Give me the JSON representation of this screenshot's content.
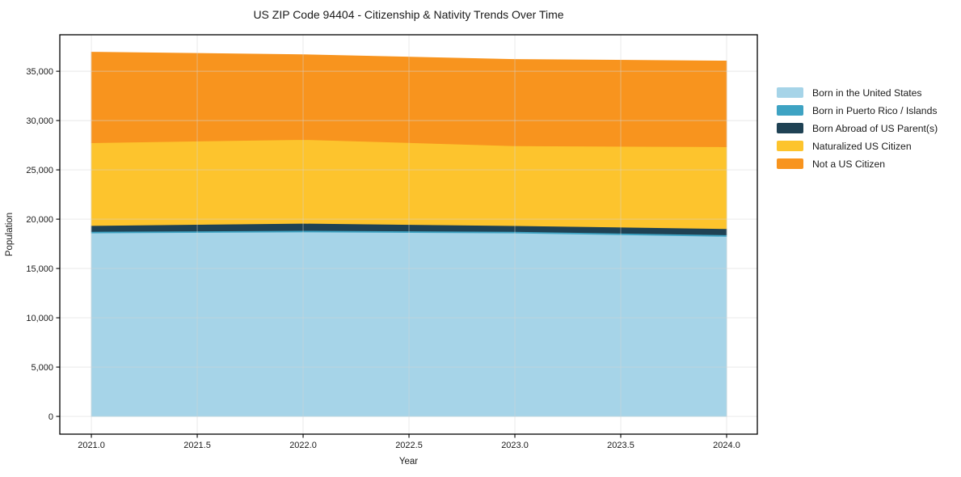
{
  "title": "US ZIP Code 94404 - Citizenship & Nativity Trends Over Time",
  "chart_data": {
    "type": "area",
    "stacked": true,
    "title": "US ZIP Code 94404 - Citizenship & Nativity Trends Over Time",
    "xlabel": "Year",
    "ylabel": "Population",
    "x": [
      2021,
      2022,
      2023,
      2024
    ],
    "series": [
      {
        "name": "Born in the United States",
        "color": "#a6d4e8",
        "values": [
          18600,
          18700,
          18600,
          18250
        ]
      },
      {
        "name": "Born in Puerto Rico / Islands",
        "color": "#3ea3c3",
        "values": [
          150,
          150,
          150,
          160
        ]
      },
      {
        "name": "Born Abroad of US Parent(s)",
        "color": "#1f4254",
        "values": [
          600,
          730,
          590,
          630
        ]
      },
      {
        "name": "Naturalized US Citizen",
        "color": "#fdc42d",
        "values": [
          8400,
          8500,
          8100,
          8300
        ]
      },
      {
        "name": "Not a US Citizen",
        "color": "#f8941e",
        "values": [
          9190,
          8600,
          8760,
          8700
        ]
      }
    ],
    "stacked_totals": [
      36940,
      36680,
      36200,
      36040
    ],
    "x_ticks": [
      2021.0,
      2021.5,
      2022.0,
      2022.5,
      2023.0,
      2023.5,
      2024.0
    ],
    "x_tick_labels": [
      "2021.0",
      "2021.5",
      "2022.0",
      "2022.5",
      "2023.0",
      "2023.5",
      "2024.0"
    ],
    "y_ticks": [
      0,
      5000,
      10000,
      15000,
      20000,
      25000,
      30000,
      35000
    ],
    "y_tick_labels": [
      "0",
      "5,000",
      "10,000",
      "15,000",
      "20,000",
      "25,000",
      "30,000",
      "35,000"
    ],
    "xlim": [
      2020.851,
      2024.145
    ],
    "ylim": [
      -1800,
      38700
    ],
    "grid": true,
    "grid_color": "#d4d4d4",
    "axis_color": "#000000",
    "legend_position": "right"
  }
}
